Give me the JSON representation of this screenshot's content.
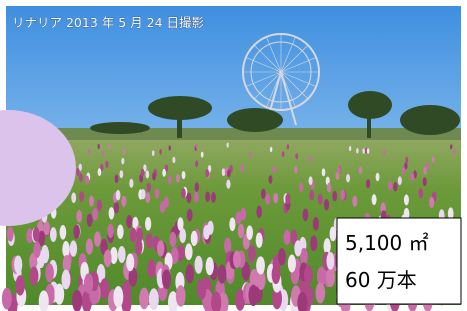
{
  "caption": "リナリア 2013 年 5 月 24 日撮影",
  "info_box": {
    "area": "5,100 ㎡",
    "count": "60 万本"
  }
}
